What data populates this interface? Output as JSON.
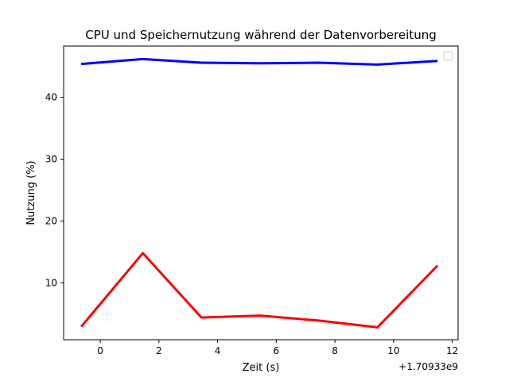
{
  "chart_data": {
    "type": "line",
    "title": "CPU und Speichernutzung während der Datenvorbereitung",
    "xlabel": "Zeit (s)",
    "ylabel": "Nutzung (%)",
    "x_offset_label": "+1.70933e9",
    "xlim": [
      -1.25,
      12.2
    ],
    "ylim": [
      0.8,
      48.3
    ],
    "x_ticks": [
      0,
      2,
      4,
      6,
      8,
      10,
      12
    ],
    "y_ticks": [
      10,
      20,
      30,
      40
    ],
    "grid": false,
    "legend": {
      "placement": "top-right",
      "entries": []
    },
    "series": [
      {
        "color": "#0000ff",
        "x": [
          -0.65,
          1.45,
          3.45,
          5.45,
          7.45,
          9.45,
          11.5
        ],
        "y": [
          45.4,
          46.2,
          45.6,
          45.5,
          45.6,
          45.3,
          45.9
        ]
      },
      {
        "color": "#ff0000",
        "x": [
          -0.65,
          1.45,
          3.45,
          5.45,
          7.45,
          9.45,
          11.5
        ],
        "y": [
          2.9,
          14.8,
          4.4,
          4.7,
          3.9,
          2.8,
          12.8
        ]
      }
    ]
  }
}
